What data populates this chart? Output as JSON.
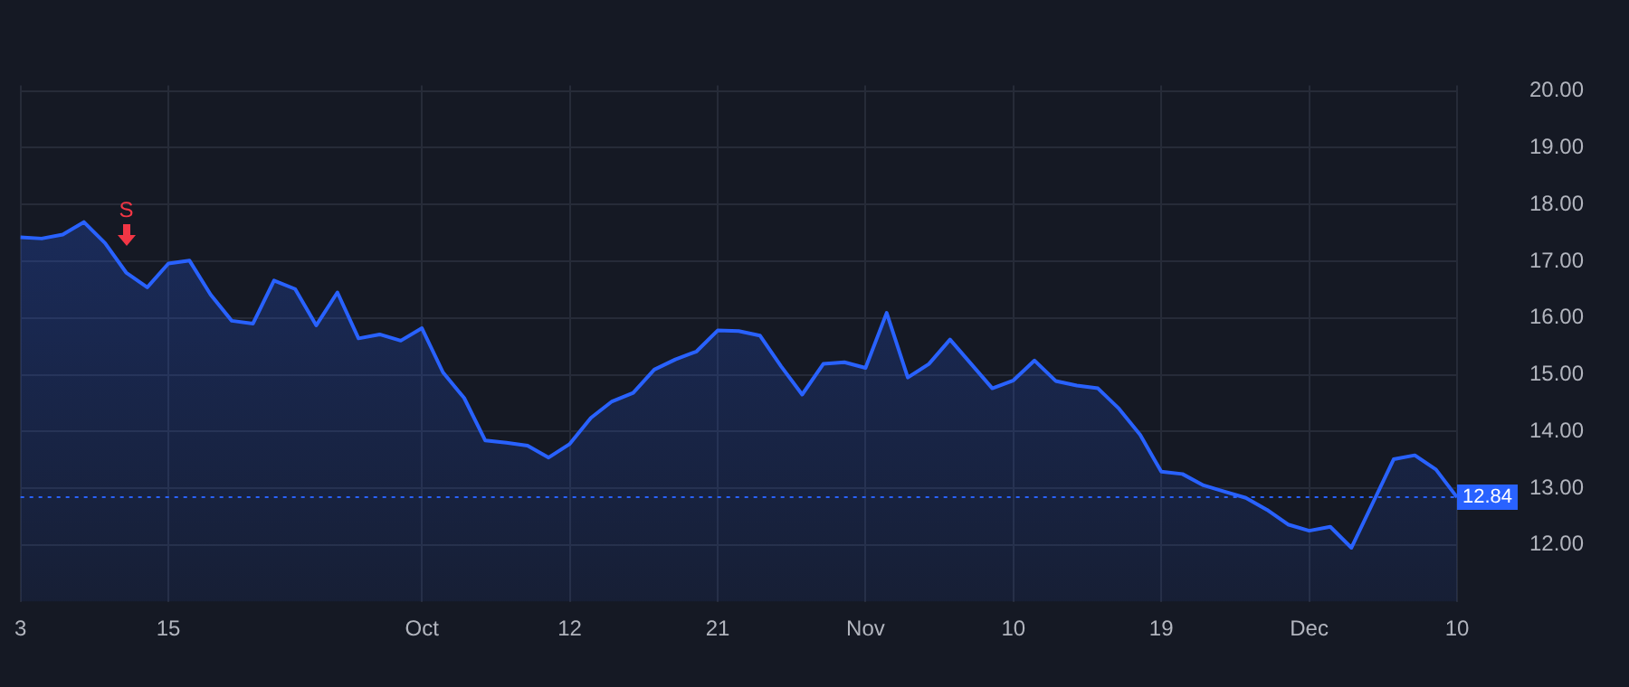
{
  "chart_data": {
    "type": "area",
    "categories": [
      "3",
      null,
      null,
      null,
      null,
      null,
      null,
      "15",
      null,
      null,
      null,
      null,
      null,
      null,
      null,
      null,
      null,
      null,
      null,
      "Oct",
      null,
      null,
      null,
      null,
      null,
      null,
      "12",
      null,
      null,
      null,
      null,
      null,
      null,
      "21",
      null,
      null,
      null,
      null,
      null,
      null,
      "Nov",
      null,
      null,
      null,
      null,
      null,
      null,
      "10",
      null,
      null,
      null,
      null,
      null,
      null,
      "19",
      null,
      null,
      null,
      null,
      null,
      null,
      "Dec",
      null,
      null,
      null,
      null,
      null,
      null,
      "10"
    ],
    "series": [
      {
        "color": "#2962ff",
        "values": [
          17.42,
          17.4,
          17.47,
          17.69,
          17.32,
          16.8,
          16.54,
          16.96,
          17.01,
          16.41,
          15.95,
          15.9,
          16.66,
          16.51,
          15.87,
          16.45,
          15.64,
          15.71,
          15.6,
          15.82,
          15.04,
          14.59,
          13.84,
          13.8,
          13.75,
          13.54,
          13.78,
          14.24,
          14.53,
          14.68,
          15.09,
          15.27,
          15.41,
          15.78,
          15.77,
          15.69,
          15.15,
          14.65,
          15.19,
          15.22,
          15.12,
          16.09,
          14.95,
          15.19,
          15.62,
          15.19,
          14.76,
          14.9,
          15.25,
          14.89,
          14.81,
          14.76,
          14.4,
          13.94,
          13.29,
          13.25,
          13.05,
          12.94,
          12.83,
          12.62,
          12.36,
          12.25,
          12.32,
          11.95,
          12.73,
          13.51,
          13.58,
          13.33,
          12.84
        ]
      }
    ],
    "ylim": [
      11,
      20.1
    ],
    "yticks": [
      {
        "value": 12,
        "label": "12.00"
      },
      {
        "value": 13,
        "label": "13.00"
      },
      {
        "value": 14,
        "label": "14.00"
      },
      {
        "value": 15,
        "label": "15.00"
      },
      {
        "value": 16,
        "label": "16.00"
      },
      {
        "value": 17,
        "label": "17.00"
      },
      {
        "value": 18,
        "label": "18.00"
      },
      {
        "value": 19,
        "label": "19.00"
      },
      {
        "value": 20,
        "label": "20.00"
      }
    ],
    "ref_lines": [
      {
        "axis": "y",
        "value": 12.84,
        "label": "12.84",
        "color": "#2962ff",
        "line_style": "dotted"
      }
    ],
    "annotations": [
      "S"
    ],
    "grid": true,
    "legend": false,
    "marker": "none",
    "line_style": "solid"
  }
}
